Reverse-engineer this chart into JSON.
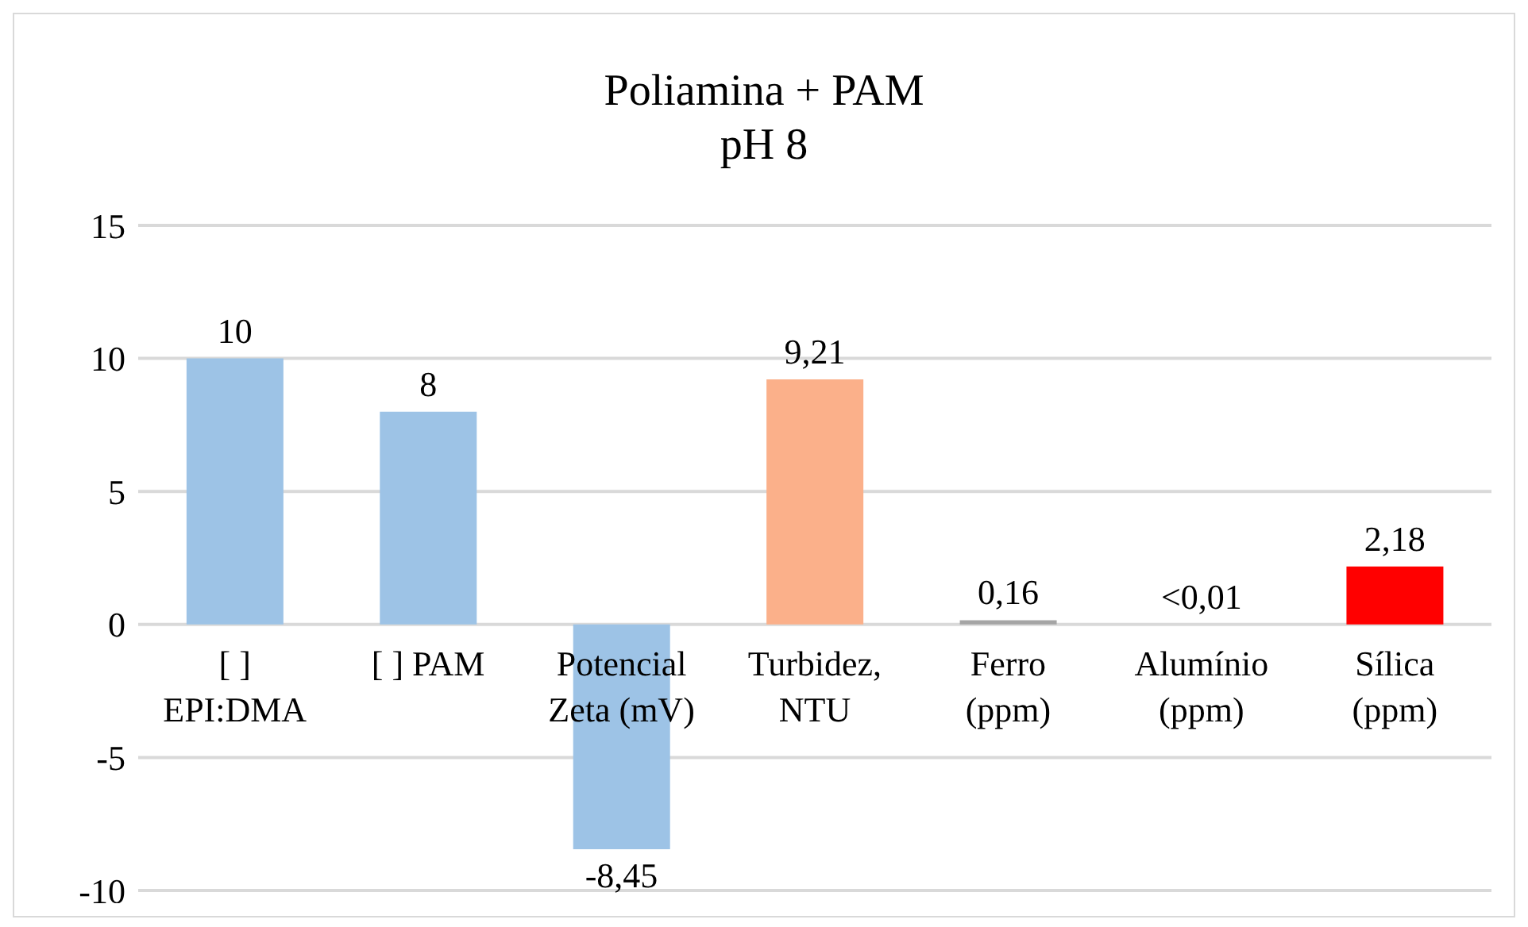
{
  "chart_data": {
    "type": "bar",
    "title": "Poliamina + PAM",
    "subtitle": "pH 8",
    "categories": [
      "[ ] EPI:DMA",
      "[ ] PAM",
      "Potencial Zeta (mV)",
      "Turbidez, NTU",
      "Ferro (ppm)",
      "Alumínio (ppm)",
      "Sílica (ppm)"
    ],
    "values": [
      10,
      8,
      -8.45,
      9.21,
      0.16,
      0,
      2.18
    ],
    "value_labels": [
      "10",
      "8",
      "-8,45",
      "9,21",
      "0,16",
      "<0,01",
      "2,18"
    ],
    "colors": [
      "#9dc3e6",
      "#9dc3e6",
      "#9dc3e6",
      "#fbb08a",
      "#a5a5a5",
      "#a5a5a5",
      "#ff0000"
    ],
    "ylim": [
      -10,
      15
    ],
    "yticks": [
      -10,
      -5,
      0,
      5,
      10,
      15
    ],
    "grid": "y"
  }
}
